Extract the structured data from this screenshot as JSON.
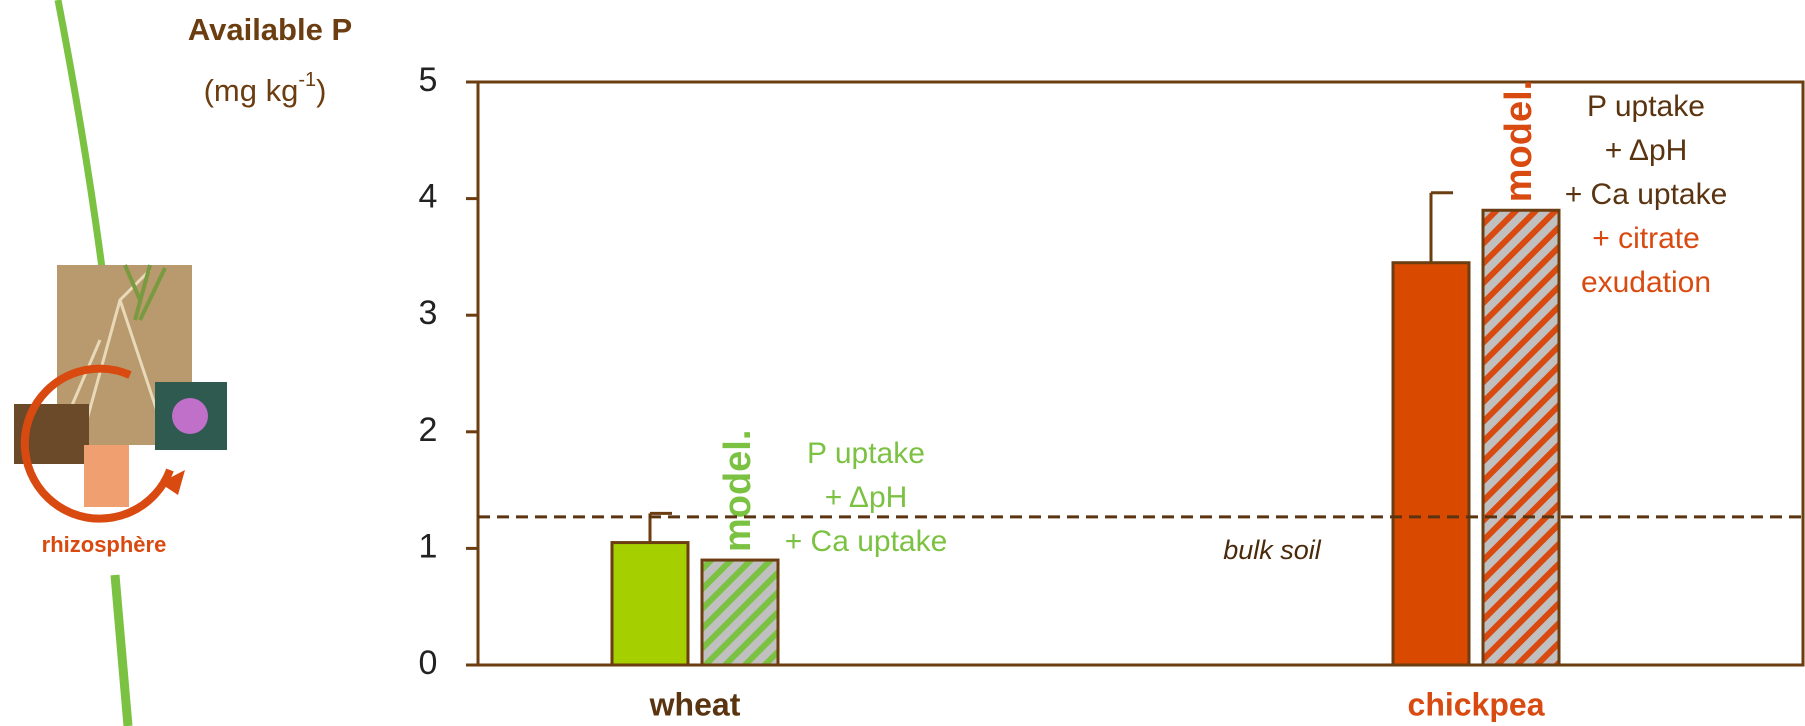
{
  "chart_data": {
    "type": "bar",
    "y_label": "Available P",
    "y_label_unit": [
      "(mg kg",
      "-1",
      ")"
    ],
    "categories": [
      "wheat",
      "chickpea"
    ],
    "category_colors": [
      "#5a3410",
      "#d94a10"
    ],
    "series": [
      {
        "colors": [
          "#a6cf00",
          "#d94a00"
        ],
        "values": [
          1.05,
          3.45
        ],
        "errors": [
          0.25,
          0.6
        ]
      },
      {
        "colors": [
          "#7cc242",
          "#d94a10"
        ],
        "pattern": "hatch",
        "values": [
          0.9,
          3.9
        ],
        "label": "model."
      }
    ],
    "annotations": [
      {
        "lines": [
          {
            "text": "P uptake",
            "color": "#7cc242"
          },
          {
            "text": "+ ΔpH",
            "color": "#7cc242"
          },
          {
            "text": "+ Ca uptake",
            "color": "#7cc242"
          }
        ]
      },
      {
        "lines": [
          {
            "text": "P uptake",
            "color": "#5a3410"
          },
          {
            "text": "+ ΔpH",
            "color": "#5a3410"
          },
          {
            "text": "+ Ca uptake",
            "color": "#5a3410"
          },
          {
            "text": "+ citrate",
            "color": "#d94a10"
          },
          {
            "text": "exudation",
            "color": "#d94a10"
          }
        ]
      }
    ],
    "reference_line": {
      "value": 1.27,
      "label": "bulk soil",
      "color": "#5a3410"
    },
    "ylim": [
      0,
      5
    ],
    "yticks": [
      0,
      1,
      2,
      3,
      4,
      5
    ],
    "axis_color": "#6b3d10",
    "side_label": "rhizosphère"
  }
}
